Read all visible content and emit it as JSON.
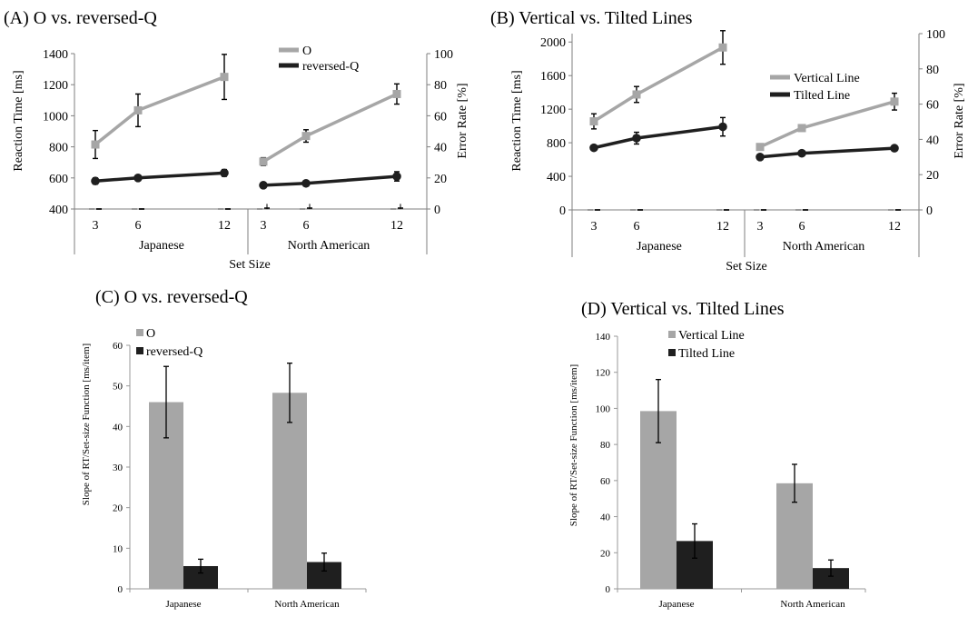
{
  "panels": {
    "A": {
      "title": "(A) O vs. reversed-Q",
      "ylabel": "Reaction Time [ms]",
      "y2label": "Error Rate [%]",
      "xlabel": "Set Size",
      "groups": [
        "Japanese",
        "North American"
      ],
      "xticks": [
        "3",
        "6",
        "12"
      ],
      "yticks": [
        "400",
        "600",
        "800",
        "1000",
        "1200",
        "1400"
      ],
      "y2ticks": [
        "0",
        "20",
        "40",
        "60",
        "80",
        "100"
      ],
      "legend": [
        "O",
        "reversed-Q"
      ]
    },
    "B": {
      "title": "(B) Vertical vs. Tilted Lines",
      "ylabel": "Reaction Time [ms]",
      "y2label": "Error Rate [%]",
      "xlabel": "Set Size",
      "groups": [
        "Japanese",
        "North American"
      ],
      "xticks": [
        "3",
        "6",
        "12"
      ],
      "yticks": [
        "0",
        "400",
        "800",
        "1200",
        "1600",
        "2000"
      ],
      "y2ticks": [
        "0",
        "20",
        "40",
        "60",
        "80",
        "100"
      ],
      "legend": [
        "Vertical Line",
        "Tilted Line"
      ]
    },
    "C": {
      "title": "(C) O vs. reversed-Q",
      "ylabel": "Slope of RT/Set-size Function [ms/item]",
      "categories": [
        "Japanese",
        "North American"
      ],
      "yticks": [
        "0",
        "10",
        "20",
        "30",
        "40",
        "50",
        "60"
      ],
      "legend": [
        "O",
        "reversed-Q"
      ]
    },
    "D": {
      "title": "(D) Vertical vs. Tilted Lines",
      "ylabel": "Slope of RT/Set-size Function [ms/item]",
      "categories": [
        "Japanese",
        "North American"
      ],
      "yticks": [
        "0",
        "20",
        "40",
        "60",
        "80",
        "100",
        "120",
        "140"
      ],
      "legend": [
        "Vertical Line",
        "Tilted Line"
      ]
    }
  },
  "chart_data": [
    {
      "type": "line",
      "title": "(A) O vs. reversed-Q",
      "xlabel": "Set Size",
      "ylabel": "Reaction Time [ms]",
      "y2label": "Error Rate [%]",
      "ylim": [
        400,
        1400
      ],
      "y2lim": [
        0,
        100
      ],
      "groups": [
        "Japanese",
        "North American"
      ],
      "x": [
        3,
        6,
        12
      ],
      "series": [
        {
          "name": "O",
          "color": "#a6a6a6",
          "rt": {
            "Japanese": [
              815,
              1035,
              1250
            ],
            "North American": [
              705,
              870,
              1140
            ]
          },
          "rt_err": {
            "Japanese": [
              90,
              105,
              145
            ],
            "North American": [
              25,
              40,
              65
            ]
          },
          "error_rate": {
            "Japanese": [
              0,
              0,
              0
            ],
            "North American": [
              0,
              0,
              0
            ]
          }
        },
        {
          "name": "reversed-Q",
          "color": "#1f1f1f",
          "rt": {
            "Japanese": [
              580,
              600,
              632
            ],
            "North American": [
              553,
              565,
              610
            ]
          },
          "rt_err": {
            "Japanese": [
              20,
              18,
              22
            ],
            "North American": [
              18,
              15,
              30
            ]
          },
          "error_rate": {
            "Japanese": [
              0,
              0,
              0
            ],
            "North American": [
              0.5,
              0.5,
              0.5
            ]
          },
          "error_rate_err": {
            "Japanese": [
              0,
              0,
              0
            ],
            "North American": [
              1,
              1,
              1
            ]
          }
        }
      ]
    },
    {
      "type": "line",
      "title": "(B) Vertical vs. Tilted Lines",
      "xlabel": "Set Size",
      "ylabel": "Reaction Time [ms]",
      "y2label": "Error Rate [%]",
      "ylim": [
        0,
        2100
      ],
      "y2lim": [
        0,
        100
      ],
      "groups": [
        "Japanese",
        "North American"
      ],
      "x": [
        3,
        6,
        12
      ],
      "series": [
        {
          "name": "Vertical Line",
          "color": "#a6a6a6",
          "rt": {
            "Japanese": [
              1055,
              1375,
              1935
            ],
            "North American": [
              750,
              975,
              1290
            ]
          },
          "rt_err": {
            "Japanese": [
              90,
              95,
              200
            ],
            "North American": [
              20,
              35,
              100
            ]
          },
          "error_rate": {
            "Japanese": [
              0,
              0,
              0
            ],
            "North American": [
              0,
              0,
              0
            ]
          }
        },
        {
          "name": "Tilted Line",
          "color": "#1f1f1f",
          "rt": {
            "Japanese": [
              740,
              855,
              990
            ],
            "North American": [
              630,
              675,
              735
            ]
          },
          "rt_err": {
            "Japanese": [
              20,
              70,
              110
            ],
            "North American": [
              15,
              20,
              30
            ]
          },
          "error_rate": {
            "Japanese": [
              0,
              0,
              0
            ],
            "North American": [
              0,
              0,
              0
            ]
          }
        }
      ]
    },
    {
      "type": "bar",
      "title": "(C) O vs. reversed-Q",
      "ylabel": "Slope of RT/Set-size Function [ms/item]",
      "ylim": [
        0,
        60
      ],
      "categories": [
        "Japanese",
        "North American"
      ],
      "series": [
        {
          "name": "O",
          "color": "#a6a6a6",
          "values": [
            46.0,
            48.3
          ],
          "errors": [
            8.8,
            7.3
          ]
        },
        {
          "name": "reversed-Q",
          "color": "#1f1f1f",
          "values": [
            5.6,
            6.6
          ],
          "errors": [
            1.7,
            2.2
          ]
        }
      ]
    },
    {
      "type": "bar",
      "title": "(D) Vertical vs. Tilted Lines",
      "ylabel": "Slope of RT/Set-size Function [ms/item]",
      "ylim": [
        0,
        140
      ],
      "categories": [
        "Japanese",
        "North American"
      ],
      "series": [
        {
          "name": "Vertical Line",
          "color": "#a6a6a6",
          "values": [
            98.5,
            58.5
          ],
          "errors": [
            17.5,
            10.5
          ]
        },
        {
          "name": "Tilted Line",
          "color": "#1f1f1f",
          "values": [
            26.5,
            11.5
          ],
          "errors": [
            9.5,
            4.5
          ]
        }
      ]
    }
  ]
}
